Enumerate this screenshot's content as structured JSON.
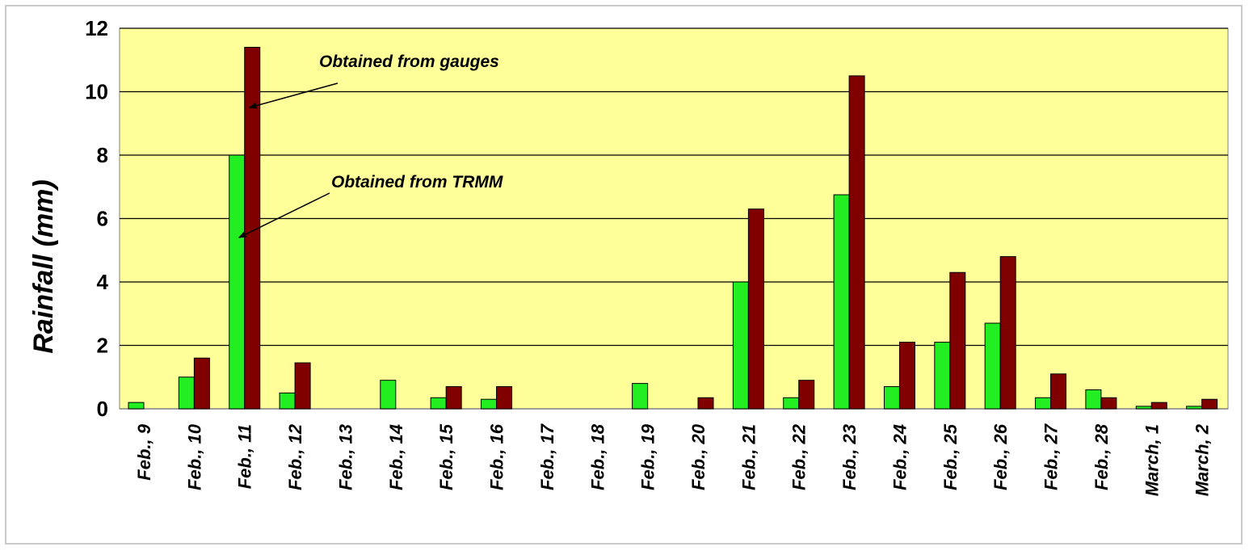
{
  "chart_data": {
    "type": "bar",
    "title": "",
    "xlabel": "",
    "ylabel": "Rainfall (mm)",
    "ylim": [
      0,
      12
    ],
    "yticks": [
      "0",
      "2",
      "4",
      "6",
      "8",
      "10",
      "12"
    ],
    "grid": true,
    "categories": [
      "Feb., 9",
      "Feb., 10",
      "Feb., 11",
      "Feb., 12",
      "Feb., 13",
      "Feb., 14",
      "Feb., 15",
      "Feb., 16",
      "Feb., 17",
      "Feb., 18",
      "Feb., 19",
      "Feb., 20",
      "Feb., 21",
      "Feb., 22",
      "Feb., 23",
      "Feb., 24",
      "Feb., 25",
      "Feb., 26",
      "Feb., 27",
      "Feb., 28",
      "March, 1",
      "March, 2"
    ],
    "series": [
      {
        "name": "Obtained from TRMM",
        "color": "#22ee22",
        "values": [
          0.2,
          1.0,
          8.0,
          0.5,
          0,
          0.9,
          0.35,
          0.3,
          0,
          0,
          0.8,
          0,
          4.0,
          0.35,
          6.75,
          0.7,
          2.1,
          2.7,
          0.35,
          0.6,
          0.08,
          0.08
        ]
      },
      {
        "name": "Obtained from gauges",
        "color": "#800000",
        "values": [
          0,
          1.6,
          11.4,
          1.45,
          0,
          0,
          0.7,
          0.7,
          0,
          0,
          0,
          0.35,
          6.3,
          0.9,
          10.5,
          2.1,
          4.3,
          4.8,
          1.1,
          0.35,
          0.2,
          0.3
        ]
      }
    ],
    "annotations": [
      {
        "text": "Obtained from gauges",
        "points_to_series": "Obtained from gauges",
        "category": "Feb., 11"
      },
      {
        "text": "Obtained from TRMM",
        "points_to_series": "Obtained from TRMM",
        "category": "Feb., 11"
      }
    ],
    "colors": {
      "plot_background": "#ffff99",
      "gridline": "#000000"
    }
  }
}
